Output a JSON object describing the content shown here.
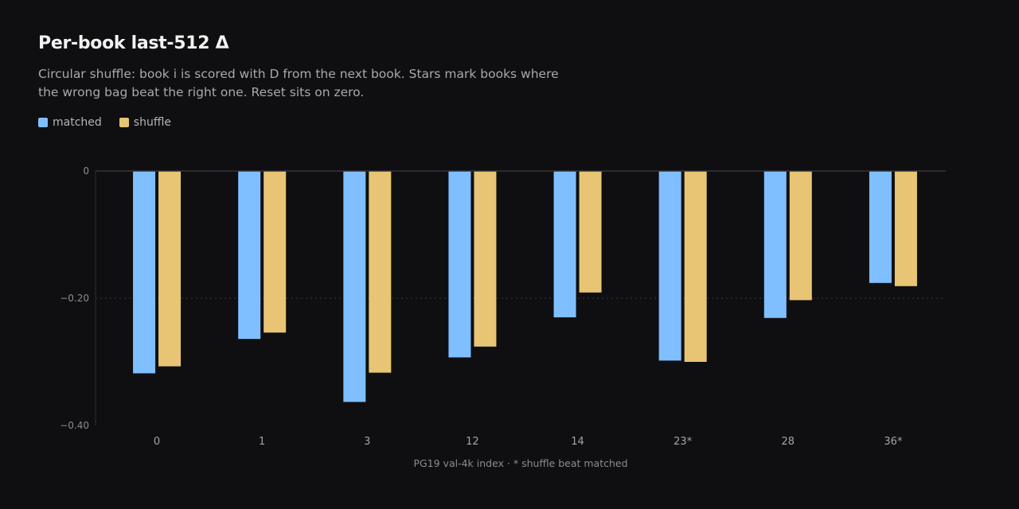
{
  "chart_data": {
    "type": "bar",
    "title": "Per-book last-512 Δ",
    "subtitle": "Circular shuffle: book i is scored with D from the next book. Stars mark books where the wrong bag beat the right one. Reset sits on zero.",
    "xlabel": "PG19 val-4k index · * shuffle beat matched",
    "ylabel": "",
    "categories": [
      "0",
      "1",
      "3",
      "12",
      "14",
      "23*",
      "28",
      "36*"
    ],
    "series": [
      {
        "name": "matched",
        "color": "#7fbfff",
        "values": [
          -0.318,
          -0.264,
          -0.363,
          -0.293,
          -0.23,
          -0.298,
          -0.231,
          -0.176
        ]
      },
      {
        "name": "shuffle",
        "color": "#e8c574",
        "values": [
          -0.307,
          -0.254,
          -0.317,
          -0.276,
          -0.191,
          -0.3,
          -0.203,
          -0.181
        ]
      }
    ],
    "yticks": [
      0,
      -0.2,
      -0.4
    ],
    "ytick_labels": [
      "0",
      "−0.20",
      "−0.40"
    ],
    "ylim": [
      -0.4,
      0
    ],
    "grid": "dotted at −0.20",
    "legend": "top-left"
  }
}
